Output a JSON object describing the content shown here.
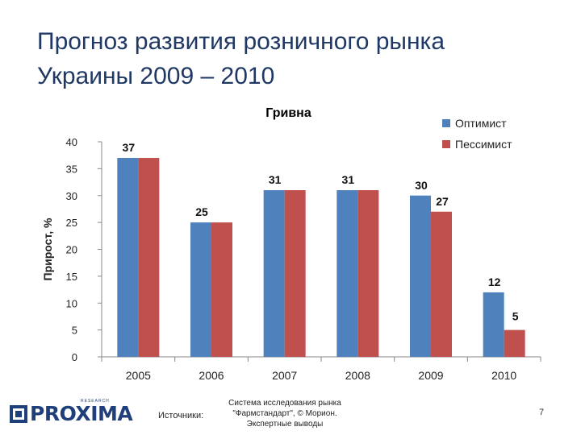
{
  "slide": {
    "title_line1": "Прогноз развития розничного рынка",
    "title_line2": "Украины 2009 – 2010"
  },
  "chart_data": {
    "type": "bar",
    "title": "Гривна",
    "xlabel": "",
    "ylabel": "Прирост, %",
    "categories": [
      "2005",
      "2006",
      "2007",
      "2008",
      "2009",
      "2010"
    ],
    "series": [
      {
        "name": "Оптимист",
        "values": [
          37,
          25,
          31,
          31,
          30,
          12
        ],
        "color": "#4f81bd"
      },
      {
        "name": "Пессимист",
        "values": [
          37,
          25,
          31,
          31,
          27,
          5
        ],
        "color": "#c0504d"
      }
    ],
    "data_labels": [
      {
        "category": "2005",
        "text": "37"
      },
      {
        "category": "2006",
        "text": "25"
      },
      {
        "category": "2007",
        "text": "31"
      },
      {
        "category": "2008",
        "text": "31"
      },
      {
        "category": "2009",
        "text": "30"
      },
      {
        "category": "2009",
        "text": "27"
      },
      {
        "category": "2010",
        "text": "12"
      },
      {
        "category": "2010",
        "text": "5"
      }
    ],
    "ylim": [
      0,
      40
    ],
    "yticks": [
      "0",
      "5",
      "10",
      "15",
      "20",
      "25",
      "30",
      "35",
      "40"
    ],
    "grid": false,
    "legend": "top-right"
  },
  "footer": {
    "logo_text": "PROXIMA",
    "logo_subtext": "RESEARCH",
    "sources_label": "Источники:",
    "sources_line1": "Система исследования рынка",
    "sources_line2": "\"Фармстандарт\", © Морион.",
    "sources_line3": "Экспертные выводы",
    "page_number": "7"
  },
  "colors": {
    "title": "#1f3864",
    "optimist": "#4f81bd",
    "pessimist": "#c0504d",
    "logo": "#1e3f7a"
  }
}
